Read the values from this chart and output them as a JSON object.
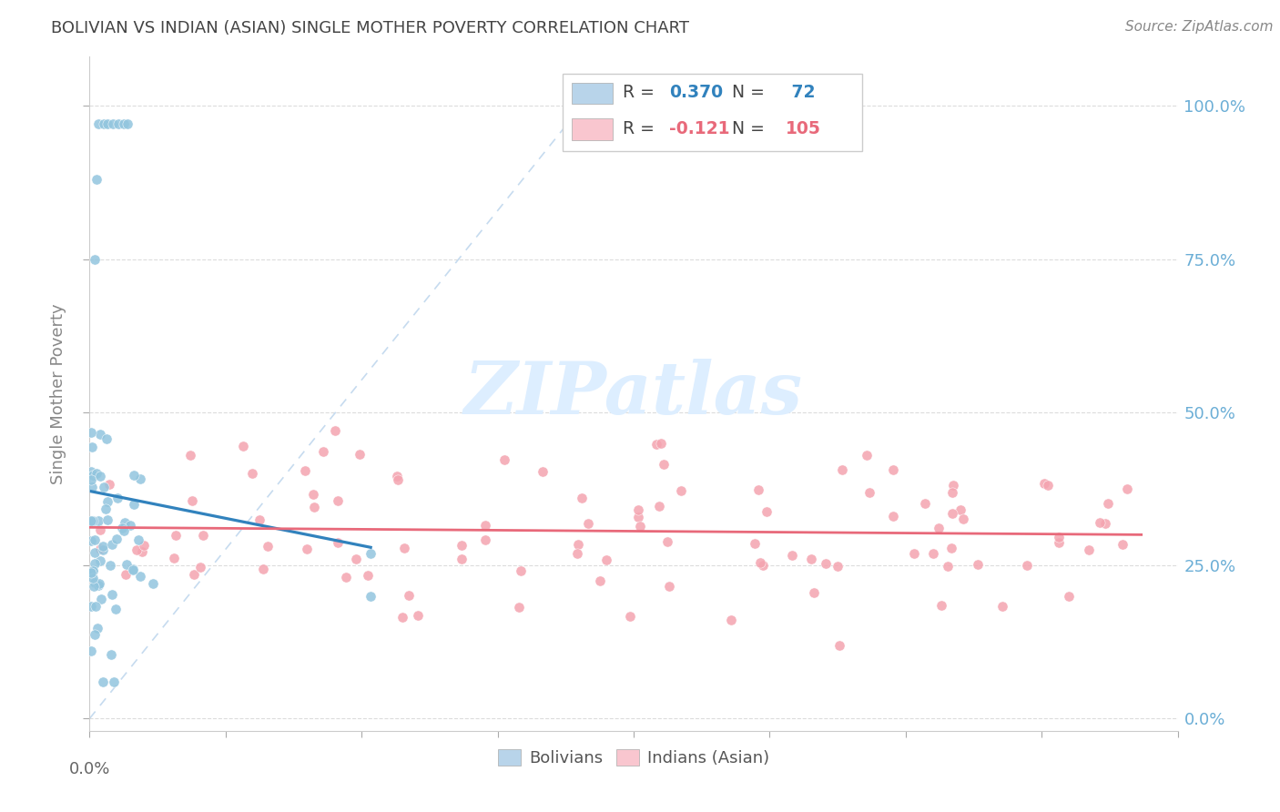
{
  "title": "BOLIVIAN VS INDIAN (ASIAN) SINGLE MOTHER POVERTY CORRELATION CHART",
  "source": "Source: ZipAtlas.com",
  "ylabel": "Single Mother Poverty",
  "xlim": [
    0.0,
    0.6
  ],
  "ylim": [
    -0.02,
    1.08
  ],
  "plot_ylim": [
    0.0,
    1.05
  ],
  "yticks": [
    0.0,
    0.25,
    0.5,
    0.75,
    1.0
  ],
  "ytick_labels_right": [
    "0.0%",
    "25.0%",
    "50.0%",
    "75.0%",
    "100.0%"
  ],
  "xticks": [
    0.0,
    0.075,
    0.15,
    0.225,
    0.3,
    0.375,
    0.45,
    0.525,
    0.6
  ],
  "blue_scatter_color": "#92c5de",
  "pink_scatter_color": "#f4a4b0",
  "blue_line_color": "#3182bd",
  "pink_line_color": "#e8697a",
  "diag_color": "#c6dbef",
  "grid_color": "#d9d9d9",
  "watermark_color": "#ddeeff",
  "background_color": "#ffffff",
  "title_color": "#444444",
  "right_tick_color": "#6baed6",
  "legend_box_blue": "#b8d4ea",
  "legend_box_pink": "#f9c6cf",
  "legend_text_color": "#444444",
  "legend_val_blue": "#3182bd",
  "legend_val_pink": "#e8697a",
  "source_color": "#888888",
  "ylabel_color": "#888888",
  "spine_color": "#cccccc",
  "tick_color": "#aaaaaa",
  "bottom_legend_text": [
    "Bolivians",
    "Indians (Asian)"
  ],
  "legend_R1": "R = 0.370",
  "legend_N1": "N =  72",
  "legend_R2": "R = -0.121",
  "legend_N2": "N = 105"
}
